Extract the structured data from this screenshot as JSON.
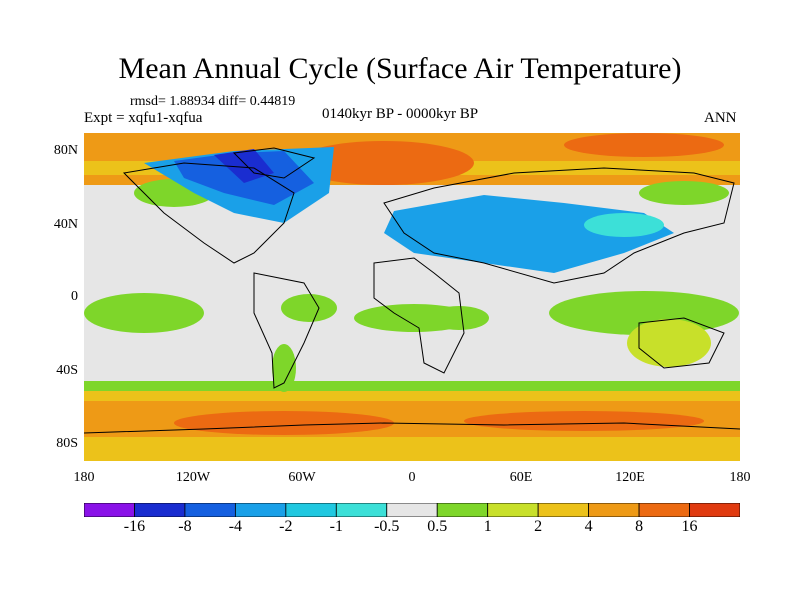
{
  "title": "Mean Annual Cycle (Surface Air Temperature)",
  "stats": "rmsd= 1.88934 diff= 0.44819",
  "experiment": "Expt = xqfu1-xqfua",
  "period": "0140kyr BP - 0000kyr BP",
  "season": "ANN",
  "lat_labels": [
    "80N",
    "40N",
    "0",
    "40S",
    "80S"
  ],
  "lon_labels": [
    "180",
    "120W",
    "60W",
    "0",
    "60E",
    "120E",
    "180"
  ],
  "colorbar": {
    "labels": [
      "-16",
      "-8",
      "-4",
      "-2",
      "-1",
      "-0.5",
      "0.5",
      "1",
      "2",
      "4",
      "8",
      "16"
    ],
    "colors": [
      "#8a12e8",
      "#1a2dd0",
      "#1560e0",
      "#1aa0e8",
      "#20c8e0",
      "#3ce0d8",
      "#e6e6e6",
      "#7ed62a",
      "#c8e02a",
      "#ecc21a",
      "#ee9a16",
      "#ec6a12",
      "#e03a10"
    ]
  }
}
